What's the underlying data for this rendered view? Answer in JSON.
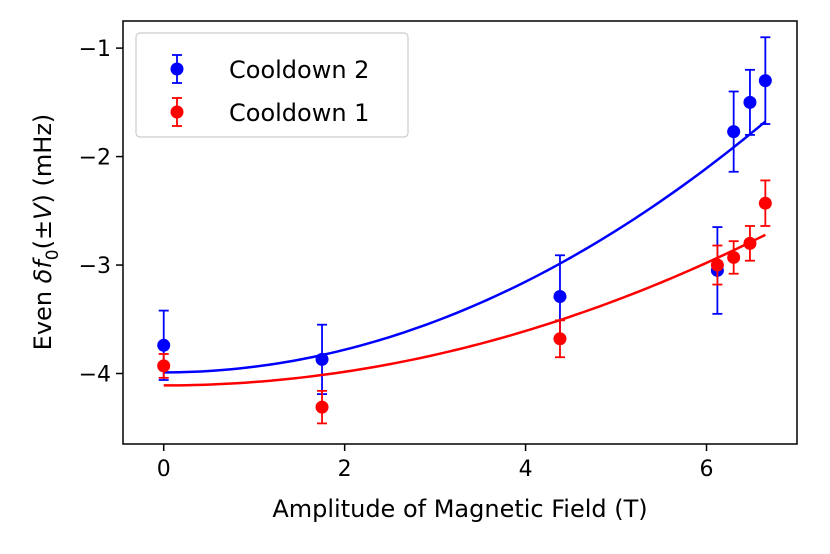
{
  "chart_data": {
    "type": "scatter",
    "title": "",
    "xlabel": "Amplitude of Magnetic Field (T)",
    "ylabel_prefix": "Even ",
    "ylabel_symbol": "δf",
    "ylabel_subscript": "0",
    "ylabel_paren_open": "(±",
    "ylabel_var": "V",
    "ylabel_paren_close": ")",
    "ylabel_units": " (mHz)",
    "xlim": [
      -0.45,
      7.0
    ],
    "ylim": [
      -4.65,
      -0.75
    ],
    "xticks": [
      0,
      2,
      4,
      6
    ],
    "xtick_labels": [
      "0",
      "2",
      "4",
      "6"
    ],
    "yticks": [
      -4,
      -3,
      -2,
      -1
    ],
    "ytick_labels": [
      "−4",
      "−3",
      "−2",
      "−1"
    ],
    "legend_position": "top-left",
    "series": [
      {
        "name": "Cooldown 2",
        "color": "#0000ff",
        "points": [
          {
            "x": 0.0,
            "y": -3.74,
            "err": 0.32
          },
          {
            "x": 1.75,
            "y": -3.87,
            "err": 0.32
          },
          {
            "x": 4.38,
            "y": -3.29,
            "err": 0.38
          },
          {
            "x": 6.12,
            "y": -3.05,
            "err": 0.4
          },
          {
            "x": 6.3,
            "y": -1.77,
            "err": 0.37
          },
          {
            "x": 6.48,
            "y": -1.5,
            "err": 0.3
          },
          {
            "x": 6.65,
            "y": -1.3,
            "err": 0.4
          }
        ],
        "fit": {
          "model": "quadratic",
          "a": -3.99,
          "c": 0.0523,
          "x_range": [
            0.0,
            6.65
          ]
        }
      },
      {
        "name": "Cooldown 1",
        "color": "#ff0000",
        "points": [
          {
            "x": 0.0,
            "y": -3.93,
            "err": 0.11
          },
          {
            "x": 1.75,
            "y": -4.31,
            "err": 0.15
          },
          {
            "x": 4.38,
            "y": -3.68,
            "err": 0.17
          },
          {
            "x": 6.12,
            "y": -3.0,
            "err": 0.18
          },
          {
            "x": 6.3,
            "y": -2.93,
            "err": 0.15
          },
          {
            "x": 6.48,
            "y": -2.8,
            "err": 0.16
          },
          {
            "x": 6.65,
            "y": -2.43,
            "err": 0.21
          }
        ],
        "fit": {
          "model": "quadratic",
          "a": -4.11,
          "c": 0.0314,
          "x_range": [
            0.0,
            6.65
          ]
        }
      }
    ]
  }
}
